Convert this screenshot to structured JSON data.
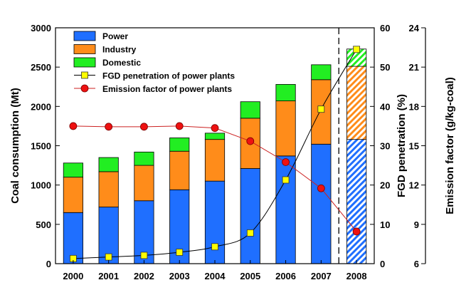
{
  "chart_data": {
    "type": "bar",
    "categories": [
      "2000",
      "2001",
      "2002",
      "2003",
      "2004",
      "2005",
      "2006",
      "2007",
      "2008"
    ],
    "stack_series": [
      {
        "name": "Power",
        "color": "#1f6fff",
        "values": [
          650,
          720,
          800,
          940,
          1050,
          1210,
          1370,
          1520,
          1580
        ]
      },
      {
        "name": "Industry",
        "color": "#ff8c1a",
        "values": [
          450,
          450,
          450,
          490,
          530,
          640,
          700,
          820,
          930
        ]
      },
      {
        "name": "Domestic",
        "color": "#22ee22",
        "values": [
          180,
          180,
          170,
          170,
          80,
          210,
          210,
          190,
          220
        ]
      }
    ],
    "projected_category": "2008",
    "line_series": [
      {
        "name": "FGD penetration of power plants",
        "axis": "y2",
        "marker": "square",
        "line_color": "#000000",
        "marker_color": "#ffff00",
        "values": [
          1.3,
          1.7,
          2.1,
          2.9,
          4.3,
          7.8,
          21.3,
          39.3,
          54.5
        ]
      },
      {
        "name": "Emission factor of power plants",
        "axis": "y3",
        "marker": "circle",
        "line_color": "#cc2222",
        "marker_color": "#ee1111",
        "values": [
          16.5,
          16.45,
          16.45,
          16.5,
          16.35,
          15.35,
          13.75,
          11.75,
          8.45
        ]
      }
    ],
    "ylabel": "Coal consumption (Mt)",
    "y2label": "FGD penetration (%)",
    "y3label": "Emission factor (g/kg-coal)",
    "ylim": [
      0,
      3000
    ],
    "y2lim": [
      0,
      60
    ],
    "y3lim": [
      6,
      24
    ],
    "yticks": [
      0,
      500,
      1000,
      1500,
      2000,
      2500,
      3000
    ],
    "y2ticks": [
      0,
      10,
      20,
      30,
      40,
      50,
      60
    ],
    "y3ticks": [
      6,
      9,
      12,
      15,
      18,
      21,
      24
    ],
    "legend_position": "top-left",
    "grid": false
  }
}
